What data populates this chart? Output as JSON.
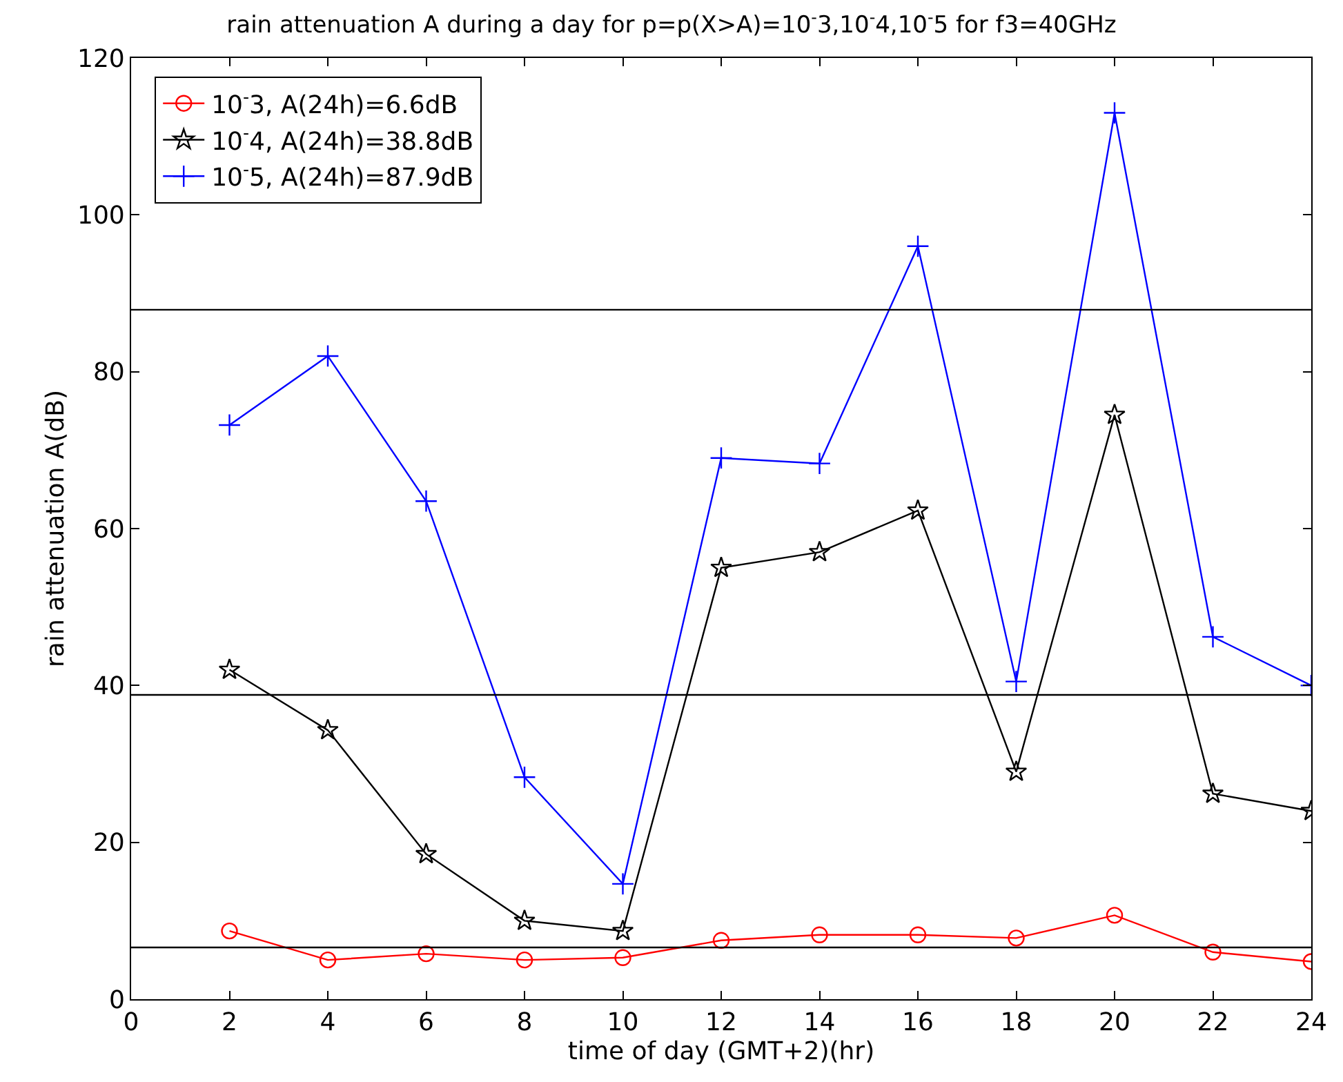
{
  "chart_data": {
    "type": "line",
    "title": "rain attenuation A during a day for p=p(X>A)=10$^{-}$3,10$^{-}$4,10$^{-}$5 for f3=40GHz",
    "xlabel": "time of day (GMT+2)(hr)",
    "ylabel": "rain attenuation A(dB)",
    "x": [
      2,
      4,
      6,
      8,
      10,
      12,
      14,
      16,
      18,
      20,
      22,
      24
    ],
    "series": [
      {
        "name": "10$^{-}$3, A(24h)=6.6dB",
        "color": "#ff0000",
        "marker": "circle",
        "values": [
          8.7,
          5,
          5.8,
          5,
          5.3,
          7.5,
          8.2,
          8.2,
          7.8,
          10.7,
          6,
          4.8
        ]
      },
      {
        "name": "10$^{-}$4, A(24h)=38.8dB",
        "color": "#000000",
        "marker": "star",
        "values": [
          42,
          34.3,
          18.5,
          10,
          8.7,
          55,
          57,
          62.3,
          29,
          74.5,
          26.2,
          24
        ]
      },
      {
        "name": "10$^{-}$5, A(24h)=87.9dB",
        "color": "#0000ff",
        "marker": "cross",
        "values": [
          73.2,
          82,
          63.5,
          28.3,
          14.7,
          69,
          68.3,
          96,
          40.5,
          113,
          46.2,
          40
        ]
      }
    ],
    "ref_lines": [
      {
        "axis": "y",
        "value": 6.6,
        "color": "#000000"
      },
      {
        "axis": "y",
        "value": 38.8,
        "color": "#000000"
      },
      {
        "axis": "y",
        "value": 87.9,
        "color": "#000000"
      }
    ],
    "xlim": [
      0,
      24
    ],
    "xticks": [
      0,
      2,
      4,
      6,
      8,
      10,
      12,
      14,
      16,
      18,
      20,
      22,
      24
    ],
    "ylim": [
      0,
      120
    ],
    "yticks": [
      0,
      20,
      40,
      60,
      80,
      100,
      120
    ],
    "grid": false,
    "legend": "top left",
    "line_style": "solid"
  }
}
